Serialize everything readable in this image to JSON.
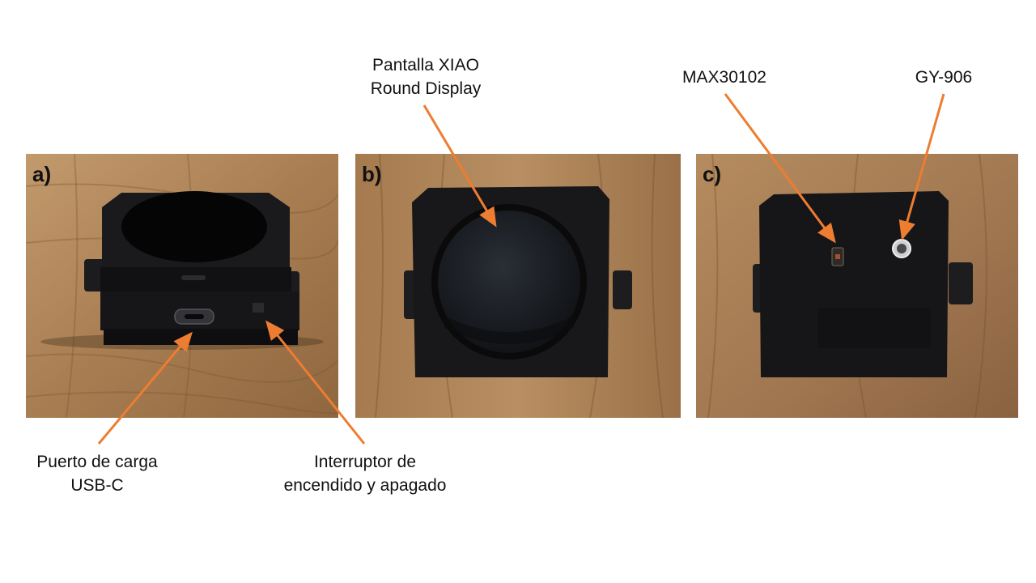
{
  "panels": [
    {
      "label": "a)"
    },
    {
      "label": "b)"
    },
    {
      "label": "c)"
    }
  ],
  "callouts": {
    "display": {
      "lines": [
        "Pantalla XIAO",
        "Round Display"
      ]
    },
    "max": {
      "lines": [
        "MAX30102"
      ]
    },
    "gy": {
      "lines": [
        "GY-906"
      ]
    },
    "usb": {
      "lines": [
        "Puerto de carga",
        "USB-C"
      ]
    },
    "switch": {
      "lines": [
        "Interruptor de",
        "encendido y apagado"
      ]
    }
  },
  "colors": {
    "arrow": "#ED7D31",
    "wood_light": "#b48a5e",
    "wood_dark": "#8a6440",
    "case": "#141416",
    "screen": "#1a1d22"
  }
}
